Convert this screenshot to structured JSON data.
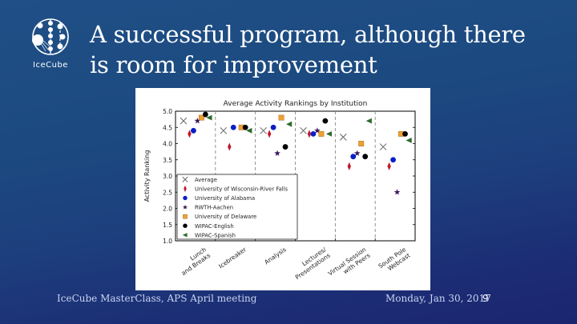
{
  "slide": {
    "title_line1": "A successful program, although there",
    "title_line2": "is room for improvement",
    "logo_text": "IceCube",
    "footer": {
      "left": "IceCube MasterClass, APS April meeting",
      "date": "Monday, Jan 30, 2017",
      "page": "9"
    }
  },
  "chart_data": {
    "type": "scatter",
    "title": "Average Activity Rankings by Institution",
    "xlabel": "",
    "ylabel": "Activity Ranking",
    "ylim": [
      1.0,
      5.0
    ],
    "yticks": [
      "1.0",
      "1.5",
      "2.0",
      "2.5",
      "3.0",
      "3.5",
      "4.0",
      "4.5",
      "5.0"
    ],
    "categories": [
      "Lunch and Breaks",
      "Icebreaker",
      "Analysis",
      "Lectures/ Presentations",
      "Virtual Session with Peers",
      "South Pole Webcast"
    ],
    "category_lines": [
      [
        "Lunch",
        "and Breaks"
      ],
      [
        "Icebreaker"
      ],
      [
        "Analysis"
      ],
      [
        "Lectures/",
        "Presentations"
      ],
      [
        "Virtual Session",
        "with Peers"
      ],
      [
        "South Pole",
        "Webcast"
      ]
    ],
    "legend_position": "lower left",
    "grid": false,
    "series": [
      {
        "name": "Average",
        "marker": "x",
        "color": "#666666",
        "values": [
          4.7,
          4.4,
          4.4,
          4.4,
          4.2,
          3.9
        ]
      },
      {
        "name": "University of Wisconsin-River Falls",
        "marker": "thin_diamond",
        "color": "#c0182a",
        "values": [
          4.3,
          3.9,
          4.3,
          4.3,
          3.3,
          3.3
        ]
      },
      {
        "name": "University of Alabama",
        "marker": "circle",
        "color": "#0a1ec8",
        "values": [
          4.4,
          4.5,
          4.5,
          4.3,
          3.6,
          3.5
        ]
      },
      {
        "name": "RWTH-Aachen",
        "marker": "star",
        "color": "#3b1a5c",
        "values": [
          4.7,
          null,
          3.7,
          4.4,
          3.7,
          2.5
        ]
      },
      {
        "name": "University of Delaware",
        "marker": "square",
        "color": "#f0a030",
        "values": [
          4.8,
          4.5,
          4.8,
          4.3,
          4.0,
          4.3
        ]
      },
      {
        "name": "WIPAC-English",
        "marker": "circle",
        "color": "#000000",
        "values": [
          4.9,
          4.5,
          3.9,
          4.7,
          3.6,
          4.3
        ]
      },
      {
        "name": "WIPAC-Spanish",
        "marker": "triangle_left",
        "color": "#2d6a2d",
        "values": [
          4.8,
          4.4,
          4.6,
          4.3,
          4.7,
          4.1
        ]
      }
    ],
    "x_offsets": [
      -0.3,
      -0.15,
      -0.05,
      0.05,
      0.15,
      0.25,
      0.35
    ]
  }
}
